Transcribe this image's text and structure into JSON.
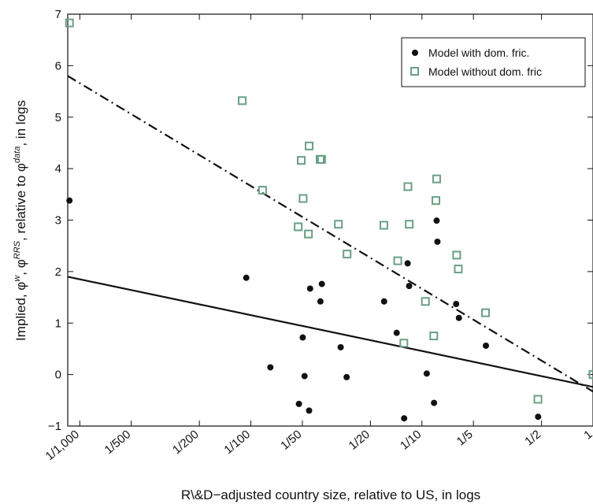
{
  "chart_data": {
    "type": "scatter",
    "title": "",
    "xlabel": "R\\&D−adjusted country size, relative to US, in logs",
    "ylabel": "Implied, φ^w, φ^RRS, relative to φ^data, in logs",
    "ylabel_parts": {
      "prefix": "Implied, φ",
      "sup1": "w",
      "mid1": ", φ",
      "sup2": "RRS",
      "mid2": ", relative to φ",
      "sup3": "data",
      "suffix": ", in logs"
    },
    "x_scale": "log",
    "xlim": [
      0.00085,
      1.0
    ],
    "ylim": [
      -1,
      7
    ],
    "x_ticks": [
      0.001,
      0.002,
      0.005,
      0.01,
      0.02,
      0.05,
      0.1,
      0.2,
      0.5,
      1.0
    ],
    "x_tick_labels": [
      "1/1,000",
      "1/500",
      "1/200",
      "1/100",
      "1/50",
      "1/20",
      "1/10",
      "1/5",
      "1/2",
      "1"
    ],
    "y_ticks": [
      -1,
      0,
      1,
      2,
      3,
      4,
      5,
      6,
      7
    ],
    "y_tick_labels": [
      "−1",
      "0",
      "1",
      "2",
      "3",
      "4",
      "5",
      "6",
      "7"
    ],
    "grid": false,
    "legend_position": "top-right",
    "colors": {
      "with": "#111111",
      "without": "#6aa084",
      "axis": "#111111"
    },
    "series": [
      {
        "name": "Model with dom. fric.",
        "marker": "filled-circle",
        "points": [
          [
            0.00087,
            3.38
          ],
          [
            0.0094,
            1.88
          ],
          [
            0.013,
            0.14
          ],
          [
            0.0191,
            -0.57
          ],
          [
            0.0201,
            0.72
          ],
          [
            0.0206,
            -0.03
          ],
          [
            0.0219,
            -0.7
          ],
          [
            0.0222,
            1.67
          ],
          [
            0.0255,
            1.42
          ],
          [
            0.026,
            1.76
          ],
          [
            0.0335,
            0.53
          ],
          [
            0.0363,
            -0.05
          ],
          [
            0.0601,
            1.42
          ],
          [
            0.0712,
            0.81
          ],
          [
            0.0787,
            -0.85
          ],
          [
            0.0825,
            2.16
          ],
          [
            0.0842,
            1.72
          ],
          [
            0.1067,
            0.02
          ],
          [
            0.1177,
            -0.55
          ],
          [
            0.1219,
            2.99
          ],
          [
            0.1232,
            2.58
          ],
          [
            0.1585,
            1.37
          ],
          [
            0.1645,
            1.1
          ],
          [
            0.2366,
            0.56
          ],
          [
            0.4776,
            -0.82
          ]
        ]
      },
      {
        "name": "Model without dom. fric",
        "marker": "open-square",
        "points": [
          [
            0.00087,
            6.83
          ],
          [
            0.0089,
            5.32
          ],
          [
            0.0117,
            3.58
          ],
          [
            0.0189,
            2.87
          ],
          [
            0.0197,
            4.16
          ],
          [
            0.0202,
            3.42
          ],
          [
            0.0217,
            2.73
          ],
          [
            0.0219,
            4.44
          ],
          [
            0.0254,
            4.18
          ],
          [
            0.0259,
            4.18
          ],
          [
            0.0325,
            2.92
          ],
          [
            0.0365,
            2.34
          ],
          [
            0.0599,
            2.9
          ],
          [
            0.0722,
            2.21
          ],
          [
            0.0784,
            0.61
          ],
          [
            0.0828,
            3.65
          ],
          [
            0.0843,
            2.92
          ],
          [
            0.1048,
            1.42
          ],
          [
            0.1173,
            0.75
          ],
          [
            0.1219,
            3.8
          ],
          [
            0.1207,
            3.38
          ],
          [
            0.1596,
            2.32
          ],
          [
            0.1632,
            2.05
          ],
          [
            0.2353,
            1.2
          ],
          [
            0.4767,
            -0.48
          ],
          [
            1.0,
            0.0
          ]
        ]
      }
    ],
    "fit_lines": [
      {
        "series": "Model with dom. fric.",
        "style": "solid",
        "x": [
          0.00085,
          1.0
        ],
        "y": [
          1.9,
          -0.24
        ]
      },
      {
        "series": "Model without dom. fric",
        "style": "dash-dot",
        "x": [
          0.00085,
          1.0
        ],
        "y": [
          5.8,
          -0.33
        ]
      }
    ]
  }
}
